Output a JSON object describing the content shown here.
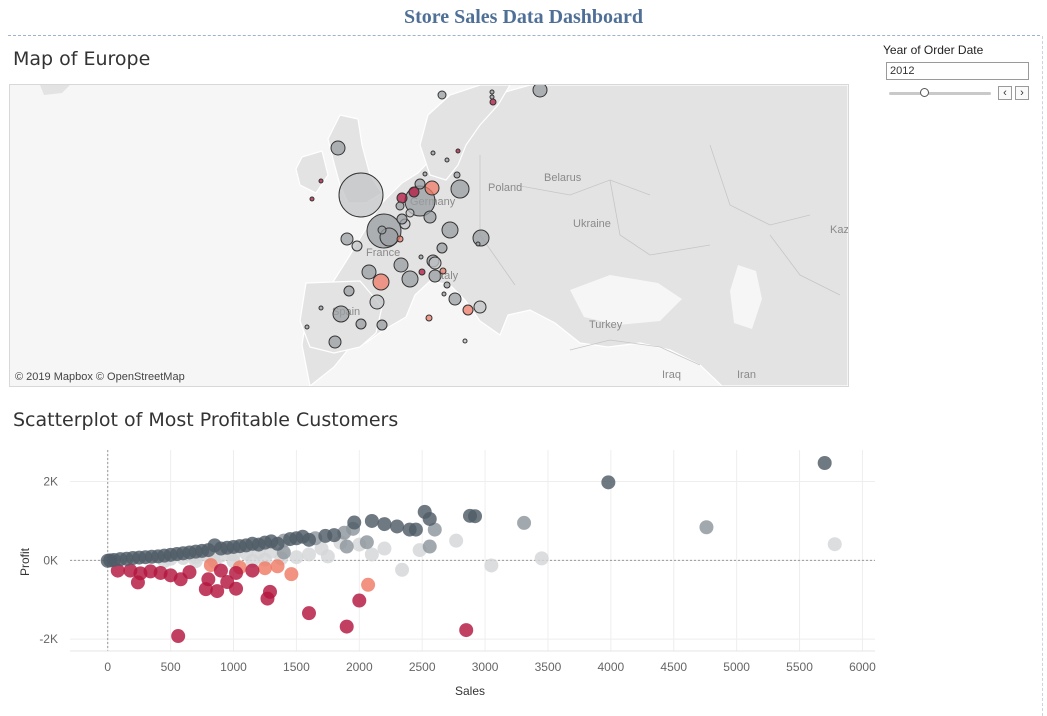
{
  "dashboard": {
    "title": "Store Sales Data Dashboard"
  },
  "map": {
    "title": "Map of Europe",
    "attribution": "© 2019 Mapbox © OpenStreetMap",
    "labels": [
      {
        "text": "Poland"
      },
      {
        "text": "Belarus"
      },
      {
        "text": "Ukraine"
      },
      {
        "text": "Kaz"
      },
      {
        "text": "Germany"
      },
      {
        "text": "France"
      },
      {
        "text": "Italy"
      },
      {
        "text": "Spain"
      },
      {
        "text": "Turkey"
      },
      {
        "text": "Iraq"
      },
      {
        "text": "Iran"
      }
    ]
  },
  "filter": {
    "label": "Year of Order Date",
    "value": "2012",
    "prev_glyph": "‹",
    "next_glyph": "›",
    "slider_fraction": 0.35
  },
  "scatter": {
    "title": "Scatterplot of Most Profitable Customers"
  },
  "colors": {
    "dark": "#4f5b66",
    "mid": "#8e969c",
    "light": "#d3d6d8",
    "salmon": "#ef7a65",
    "crimson": "#b3163f",
    "title": "#4f6f97"
  },
  "chart_data": {
    "type": "scatter",
    "xlabel": "Sales",
    "ylabel": "Profit",
    "xlim": [
      -300,
      6100
    ],
    "ylim": [
      -2300,
      2800
    ],
    "x_ticks": [
      0,
      500,
      1000,
      1500,
      2000,
      2500,
      3000,
      3500,
      4000,
      4500,
      5000,
      5500,
      6000
    ],
    "x_tick_labels": [
      "0",
      "500",
      "1000",
      "1500",
      "2000",
      "2500",
      "3000",
      "3500",
      "4000",
      "4500",
      "5000",
      "5500",
      "6000"
    ],
    "y_ticks": [
      -2000,
      0,
      2000
    ],
    "y_tick_labels": [
      "-2K",
      "0K",
      "2K"
    ],
    "grid": true,
    "points": [
      {
        "x": 5700,
        "y": 2470,
        "c": "dark"
      },
      {
        "x": 3980,
        "y": 1980,
        "c": "dark"
      },
      {
        "x": 4760,
        "y": 840,
        "c": "mid"
      },
      {
        "x": 5780,
        "y": 410,
        "c": "light"
      },
      {
        "x": 3310,
        "y": 950,
        "c": "mid"
      },
      {
        "x": 3050,
        "y": -130,
        "c": "light"
      },
      {
        "x": 3450,
        "y": 50,
        "c": "light"
      },
      {
        "x": 2920,
        "y": 1120,
        "c": "dark"
      },
      {
        "x": 2880,
        "y": 1130,
        "c": "dark"
      },
      {
        "x": 2560,
        "y": 1050,
        "c": "dark"
      },
      {
        "x": 2520,
        "y": 1230,
        "c": "dark"
      },
      {
        "x": 2450,
        "y": 780,
        "c": "dark"
      },
      {
        "x": 2400,
        "y": 780,
        "c": "dark"
      },
      {
        "x": 2600,
        "y": 780,
        "c": "mid"
      },
      {
        "x": 2770,
        "y": 500,
        "c": "light"
      },
      {
        "x": 2560,
        "y": 350,
        "c": "mid"
      },
      {
        "x": 2480,
        "y": 260,
        "c": "light"
      },
      {
        "x": 2340,
        "y": -240,
        "c": "light"
      },
      {
        "x": 2300,
        "y": 860,
        "c": "dark"
      },
      {
        "x": 2200,
        "y": 920,
        "c": "dark"
      },
      {
        "x": 2100,
        "y": 1000,
        "c": "dark"
      },
      {
        "x": 1960,
        "y": 960,
        "c": "dark"
      },
      {
        "x": 1950,
        "y": 800,
        "c": "mid"
      },
      {
        "x": 1880,
        "y": 700,
        "c": "mid"
      },
      {
        "x": 1800,
        "y": 640,
        "c": "dark"
      },
      {
        "x": 1730,
        "y": 620,
        "c": "dark"
      },
      {
        "x": 1650,
        "y": 560,
        "c": "mid"
      },
      {
        "x": 2000,
        "y": 400,
        "c": "light"
      },
      {
        "x": 2060,
        "y": 460,
        "c": "mid"
      },
      {
        "x": 2200,
        "y": 300,
        "c": "light"
      },
      {
        "x": 2100,
        "y": 150,
        "c": "light"
      },
      {
        "x": 1900,
        "y": 350,
        "c": "mid"
      },
      {
        "x": 1850,
        "y": 450,
        "c": "light"
      },
      {
        "x": 1700,
        "y": 300,
        "c": "light"
      },
      {
        "x": 1600,
        "y": 520,
        "c": "dark"
      },
      {
        "x": 1550,
        "y": 600,
        "c": "dark"
      },
      {
        "x": 1500,
        "y": 560,
        "c": "dark"
      },
      {
        "x": 1450,
        "y": 540,
        "c": "dark"
      },
      {
        "x": 1400,
        "y": 500,
        "c": "mid"
      },
      {
        "x": 1350,
        "y": 420,
        "c": "dark"
      },
      {
        "x": 1300,
        "y": 480,
        "c": "dark"
      },
      {
        "x": 1250,
        "y": 450,
        "c": "dark"
      },
      {
        "x": 1200,
        "y": 400,
        "c": "dark"
      },
      {
        "x": 1150,
        "y": 420,
        "c": "dark"
      },
      {
        "x": 1100,
        "y": 380,
        "c": "dark"
      },
      {
        "x": 1050,
        "y": 360,
        "c": "dark"
      },
      {
        "x": 1000,
        "y": 340,
        "c": "dark"
      },
      {
        "x": 950,
        "y": 320,
        "c": "dark"
      },
      {
        "x": 900,
        "y": 300,
        "c": "dark"
      },
      {
        "x": 850,
        "y": 380,
        "c": "dark"
      },
      {
        "x": 800,
        "y": 260,
        "c": "dark"
      },
      {
        "x": 750,
        "y": 240,
        "c": "dark"
      },
      {
        "x": 700,
        "y": 220,
        "c": "dark"
      },
      {
        "x": 650,
        "y": 200,
        "c": "dark"
      },
      {
        "x": 600,
        "y": 180,
        "c": "dark"
      },
      {
        "x": 550,
        "y": 160,
        "c": "dark"
      },
      {
        "x": 500,
        "y": 140,
        "c": "dark"
      },
      {
        "x": 450,
        "y": 120,
        "c": "dark"
      },
      {
        "x": 400,
        "y": 100,
        "c": "dark"
      },
      {
        "x": 350,
        "y": 90,
        "c": "dark"
      },
      {
        "x": 300,
        "y": 80,
        "c": "dark"
      },
      {
        "x": 250,
        "y": 70,
        "c": "dark"
      },
      {
        "x": 200,
        "y": 60,
        "c": "dark"
      },
      {
        "x": 150,
        "y": 40,
        "c": "dark"
      },
      {
        "x": 100,
        "y": 30,
        "c": "dark"
      },
      {
        "x": 50,
        "y": 10,
        "c": "dark"
      },
      {
        "x": 20,
        "y": 0,
        "c": "dark"
      },
      {
        "x": 0,
        "y": -10,
        "c": "dark"
      },
      {
        "x": 1400,
        "y": 200,
        "c": "mid"
      },
      {
        "x": 1300,
        "y": 220,
        "c": "light"
      },
      {
        "x": 1200,
        "y": 200,
        "c": "light"
      },
      {
        "x": 1100,
        "y": 180,
        "c": "light"
      },
      {
        "x": 1000,
        "y": 150,
        "c": "light"
      },
      {
        "x": 900,
        "y": 120,
        "c": "light"
      },
      {
        "x": 800,
        "y": 100,
        "c": "light"
      },
      {
        "x": 700,
        "y": 80,
        "c": "light"
      },
      {
        "x": 600,
        "y": 60,
        "c": "light"
      },
      {
        "x": 500,
        "y": 40,
        "c": "light"
      },
      {
        "x": 1600,
        "y": 150,
        "c": "light"
      },
      {
        "x": 1750,
        "y": 100,
        "c": "light"
      },
      {
        "x": 1500,
        "y": 80,
        "c": "light"
      },
      {
        "x": 1380,
        "y": 50,
        "c": "light"
      },
      {
        "x": 1250,
        "y": 20,
        "c": "light"
      },
      {
        "x": 1150,
        "y": -10,
        "c": "light"
      },
      {
        "x": 1000,
        "y": -20,
        "c": "light"
      },
      {
        "x": 850,
        "y": -30,
        "c": "light"
      },
      {
        "x": 700,
        "y": -20,
        "c": "light"
      },
      {
        "x": 450,
        "y": -20,
        "c": "light"
      },
      {
        "x": 2070,
        "y": -620,
        "c": "salmon"
      },
      {
        "x": 1460,
        "y": -350,
        "c": "salmon"
      },
      {
        "x": 1250,
        "y": -200,
        "c": "salmon"
      },
      {
        "x": 1050,
        "y": -180,
        "c": "salmon"
      },
      {
        "x": 820,
        "y": -120,
        "c": "salmon"
      },
      {
        "x": 1350,
        "y": -150,
        "c": "salmon"
      },
      {
        "x": 2850,
        "y": -1770,
        "c": "crimson"
      },
      {
        "x": 1900,
        "y": -1680,
        "c": "crimson"
      },
      {
        "x": 1600,
        "y": -1340,
        "c": "crimson"
      },
      {
        "x": 2000,
        "y": -1020,
        "c": "crimson"
      },
      {
        "x": 1270,
        "y": -970,
        "c": "crimson"
      },
      {
        "x": 1290,
        "y": -800,
        "c": "crimson"
      },
      {
        "x": 560,
        "y": -1920,
        "c": "crimson"
      },
      {
        "x": 1020,
        "y": -720,
        "c": "crimson"
      },
      {
        "x": 870,
        "y": -780,
        "c": "crimson"
      },
      {
        "x": 780,
        "y": -730,
        "c": "crimson"
      },
      {
        "x": 950,
        "y": -550,
        "c": "crimson"
      },
      {
        "x": 800,
        "y": -480,
        "c": "crimson"
      },
      {
        "x": 580,
        "y": -480,
        "c": "crimson"
      },
      {
        "x": 500,
        "y": -380,
        "c": "crimson"
      },
      {
        "x": 420,
        "y": -320,
        "c": "crimson"
      },
      {
        "x": 340,
        "y": -280,
        "c": "crimson"
      },
      {
        "x": 260,
        "y": -330,
        "c": "crimson"
      },
      {
        "x": 240,
        "y": -560,
        "c": "crimson"
      },
      {
        "x": 180,
        "y": -260,
        "c": "crimson"
      },
      {
        "x": 80,
        "y": -260,
        "c": "crimson"
      },
      {
        "x": 650,
        "y": -300,
        "c": "crimson"
      },
      {
        "x": 1020,
        "y": -320,
        "c": "crimson"
      },
      {
        "x": 900,
        "y": -260,
        "c": "crimson"
      },
      {
        "x": 1150,
        "y": -260,
        "c": "crimson"
      }
    ]
  }
}
